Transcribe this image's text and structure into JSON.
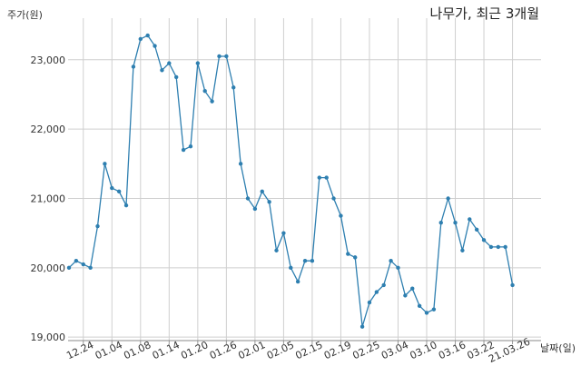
{
  "chart_data": {
    "type": "line",
    "title": "나무가, 최근 3개월",
    "ylabel": "주가(원)",
    "xlabel": "날짜(일)",
    "ylim": [
      18950,
      23600
    ],
    "yticks": [
      19000,
      20000,
      21000,
      22000,
      23000
    ],
    "ytick_labels": [
      "19,000",
      "20,000",
      "21,000",
      "22,000",
      "23,000"
    ],
    "xtick_labels": [
      "12.24",
      "01.04",
      "01.08",
      "01.14",
      "01.20",
      "01.26",
      "02.01",
      "02.05",
      "02.15",
      "02.19",
      "02.25",
      "03.04",
      "03.10",
      "03.16",
      "03.22",
      "21.03.26"
    ],
    "xtick_index": [
      2,
      6,
      10,
      14,
      18,
      22,
      26,
      30,
      34,
      38,
      42,
      46,
      50,
      54,
      58,
      62
    ],
    "grid": true,
    "series": [
      {
        "color": "#2e7fb0",
        "values": [
          20000,
          20100,
          20050,
          20000,
          20600,
          21500,
          21150,
          21100,
          20900,
          22900,
          23300,
          23350,
          23200,
          22850,
          22950,
          22750,
          21700,
          21750,
          22950,
          22550,
          22400,
          23050,
          23050,
          22600,
          21500,
          21000,
          20850,
          21100,
          20950,
          20250,
          20500,
          20000,
          19800,
          20100,
          20100,
          21300,
          21300,
          21000,
          20750,
          20200,
          20150,
          19150,
          19500,
          19650,
          19750,
          20100,
          20000,
          19600,
          19700,
          19450,
          19350,
          19400,
          20650,
          21000,
          20650,
          20250,
          20700,
          20550,
          20400,
          20300,
          20300,
          20300,
          19750
        ]
      }
    ]
  }
}
